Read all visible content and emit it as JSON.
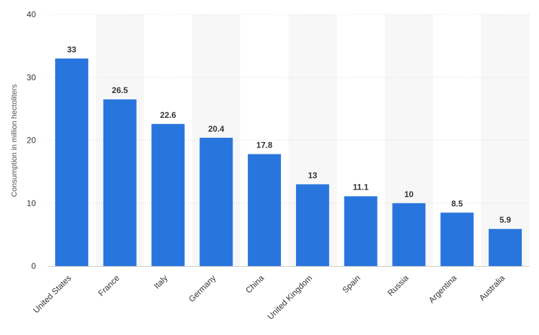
{
  "chart_data": {
    "type": "bar",
    "categories": [
      "United States",
      "France",
      "Italy",
      "Germany",
      "China",
      "United Kingdom",
      "Spain",
      "Russia",
      "Argentina",
      "Australia"
    ],
    "values": [
      33,
      26.5,
      22.6,
      20.4,
      17.8,
      13,
      11.1,
      10,
      8.5,
      5.9
    ],
    "value_labels": [
      "33",
      "26.5",
      "22.6",
      "20.4",
      "17.8",
      "13",
      "11.1",
      "10",
      "8.5",
      "5.9"
    ],
    "ylabel": "Consumption in million hectoliters",
    "ylim": [
      0,
      40
    ],
    "yticks": [
      "0",
      "10",
      "20",
      "30",
      "40"
    ],
    "grid": true,
    "bar_color": "#2876dd",
    "band_color": "#f7f7f7"
  }
}
